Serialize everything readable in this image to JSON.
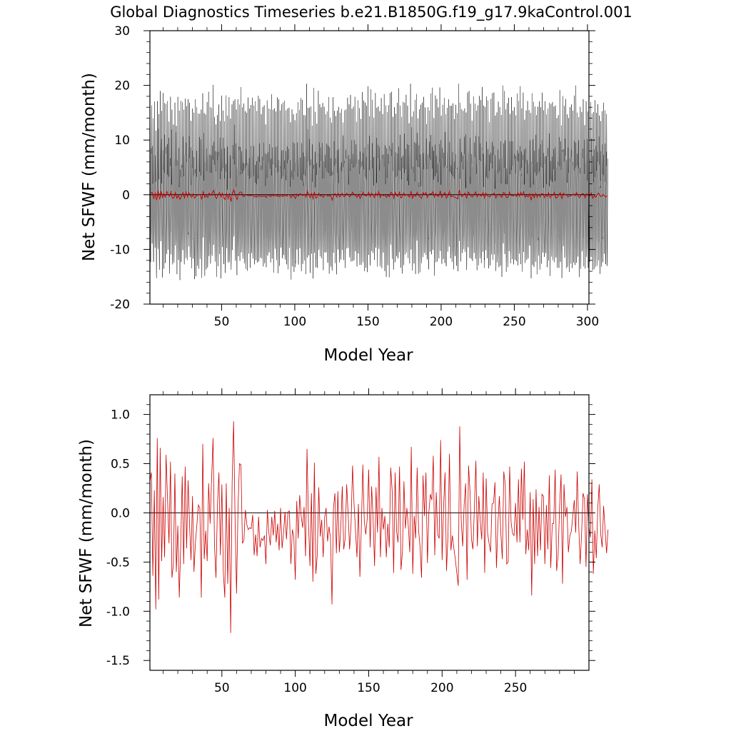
{
  "title": "Global Diagnostics Timeseries b.e21.B1850G.f19_g17.9kaControl.001",
  "colors": {
    "monthly": "#000000",
    "annual": "#cc0000",
    "zero": "#000000"
  },
  "chart_data": [
    {
      "type": "line",
      "panel": "monthly",
      "xlabel": "Model Year",
      "ylabel": "Net SFWF (mm/month)",
      "xlim": [
        1,
        301
      ],
      "ylim": [
        -20,
        30
      ],
      "xticks": [
        50,
        100,
        150,
        200,
        250,
        300
      ],
      "xtick_labels": [
        "50",
        "100",
        "150",
        "200",
        "250",
        "300"
      ],
      "yticks": [
        -20,
        -10,
        0,
        10,
        20,
        30
      ],
      "ytick_labels": [
        "-20",
        "-10",
        "0",
        "10",
        "20",
        "30"
      ],
      "zero_line": 0,
      "series": [
        {
          "kind": "monthly",
          "x_start": 1,
          "months_per_year": 12,
          "seasonal_max": 16.5,
          "seasonal_min": -11.8,
          "envelope": {
            "max_peak": 20.3,
            "min_trough": -15.6
          }
        },
        {
          "kind": "annual_mean",
          "ref": "annual"
        }
      ]
    },
    {
      "type": "line",
      "panel": "annual",
      "xlabel": "Model Year",
      "ylabel": "Net SFWF (mm/month)",
      "xlim": [
        1,
        300
      ],
      "ylim": [
        -1.6,
        1.2
      ],
      "xticks": [
        50,
        100,
        150,
        200,
        250
      ],
      "xtick_labels": [
        "50",
        "100",
        "150",
        "200",
        "250"
      ],
      "yticks": [
        -1.5,
        -1.0,
        -0.5,
        0.0,
        0.5,
        1.0
      ],
      "ytick_labels": [
        "-1.5",
        "-1.0",
        "-0.5",
        "0.0",
        "0.5",
        "1.0"
      ],
      "zero_line": 0,
      "x_start": 1,
      "values": [
        0.32,
        0.41,
        -0.64,
        0.23,
        -0.98,
        0.76,
        -0.88,
        0.66,
        -0.49,
        0.16,
        -0.45,
        0.59,
        0.14,
        -0.31,
        0.52,
        -0.66,
        -0.52,
        0.4,
        -0.6,
        -0.13,
        -0.86,
        -0.31,
        0.37,
        -0.52,
        0.47,
        -0.36,
        0.33,
        -0.12,
        -0.48,
        0.17,
        -0.6,
        -0.3,
        -0.12,
        0.08,
        0.05,
        -0.86,
        0.7,
        -0.47,
        -0.18,
        -0.49,
        0.3,
        -0.11,
        0.34,
        0.76,
        -0.34,
        -0.66,
        0.08,
        0.41,
        -0.43,
        0.29,
        -0.6,
        -0.86,
        0.3,
        -0.72,
        0.05,
        -1.22,
        0.31,
        0.93,
        -0.07,
        -0.82,
        0.05,
        0.5,
        0.49,
        -0.31,
        -0.28,
        0.03,
        -0.12,
        -0.17,
        -0.15,
        -0.16,
        -0.02,
        -0.43,
        -0.22,
        -0.44,
        -0.04,
        -0.35,
        -0.26,
        -0.28,
        -0.23,
        -0.52,
        0.03,
        -0.2,
        -0.33,
        -0.04,
        -0.23,
        0.02,
        -0.3,
        -0.11,
        -0.38,
        0.05,
        -0.36,
        -0.21,
        0.01,
        -0.27,
        0.01,
        0.02,
        -0.52,
        -0.17,
        -0.24,
        -0.68,
        0.12,
        -0.26,
        0.18,
        -0.03,
        -0.15,
        0.06,
        -0.44,
        0.65,
        -0.1,
        -0.54,
        0.2,
        -0.7,
        0.51,
        -0.62,
        -0.42,
        0.26,
        -0.24,
        -0.07,
        -0.45,
        -0.05,
        0.05,
        -0.29,
        -0.14,
        -0.26,
        -0.93,
        0.05,
        0.2,
        -0.41,
        0.22,
        -0.4,
        -0.15,
        0.27,
        -0.37,
        -0.26,
        0.29,
        -0.01,
        -0.37,
        -0.11,
        0.48,
        0.1,
        -0.18,
        -0.45,
        0.09,
        -0.65,
        -0.15,
        0.49,
        -0.08,
        -0.22,
        -0.06,
        0.44,
        -0.35,
        0.27,
        -0.06,
        -0.54,
        0.26,
        -0.2,
        0.57,
        -0.45,
        0.05,
        -0.17,
        -0.03,
        -0.45,
        -0.11,
        -0.35,
        0.46,
        0.22,
        -0.61,
        0.41,
        -0.19,
        -0.3,
        0.47,
        -0.58,
        -0.39,
        0.32,
        -0.16,
        0.05,
        -0.14,
        -0.4,
        0.67,
        -0.62,
        -0.03,
        -0.26,
        0.46,
        -0.18,
        -0.35,
        -0.66,
        0.38,
        -0.03,
        0.41,
        -0.51,
        0.01,
        0.19,
        0.13,
        0.58,
        -0.43,
        0.21,
        -0.22,
        -0.26,
        0.74,
        -0.48,
        0.06,
        0.41,
        -0.59,
        -0.22,
        0.6,
        -0.38,
        -0.23,
        -0.36,
        -0.47,
        -0.61,
        -0.74,
        0.88,
        -0.07,
        -0.34,
        0.08,
        0.3,
        -0.68,
        0.48,
        0.22,
        -0.27,
        -0.37,
        0.06,
        0.53,
        -0.34,
        0.17,
        -0.09,
        -0.27,
        0.41,
        -0.61,
        0.35,
        -0.21,
        -0.31,
        -0.4,
        0.09,
        0.1,
        0.31,
        -0.56,
        -0.11,
        0.17,
        -0.21,
        -0.47,
        0.42,
        0.29,
        -0.52,
        -0.5,
        0.47,
        -0.1,
        -0.21,
        -0.23,
        0.1,
        -0.3,
        0.34,
        -0.3,
        0.45,
        -0.07,
        0.52,
        -0.42,
        -0.17,
        -0.38,
        0.21,
        -0.84,
        0.14,
        -0.52,
        0.24,
        -0.44,
        0.06,
        -0.38,
        0.19,
        0.17,
        -0.52,
        0.08,
        -0.37,
        0.38,
        -0.56,
        -0.11,
        -0.11,
        0.44,
        -0.59,
        -0.43,
        0.06,
        0.39,
        -0.72,
        0.29,
        -0.04,
        0.06,
        -0.4,
        -0.23,
        -0.19,
        -0.03,
        0.13,
        -0.2,
        0.42,
        -0.11,
        -0.52,
        -0.21,
        0.2,
        0.14,
        -0.55,
        0.19,
        -0.14,
        -0.25,
        0.34,
        -0.62,
        -0.18,
        -0.46,
        0.04,
        0.29,
        -0.21,
        -0.35,
        0.07,
        -0.17,
        -0.41,
        -0.17
      ]
    }
  ]
}
